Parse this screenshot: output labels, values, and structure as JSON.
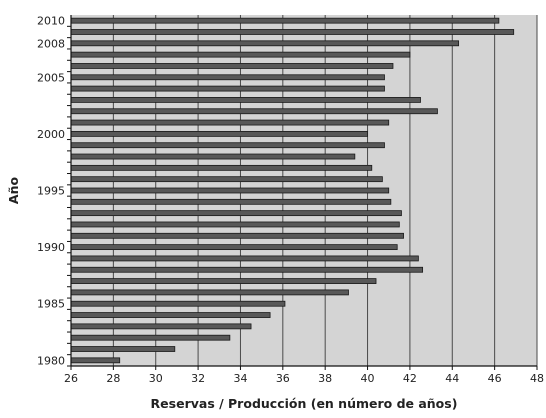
{
  "chart_data": {
    "type": "bar",
    "orientation": "horizontal",
    "xlabel": "Reservas / Producción (en número de años)",
    "ylabel": "Año",
    "xlim": [
      26,
      48
    ],
    "x_ticks": [
      26,
      28,
      30,
      32,
      34,
      36,
      38,
      40,
      42,
      44,
      46,
      48
    ],
    "y_tick_labels": [
      "1980",
      "1985",
      "1990",
      "1995",
      "2000",
      "2005",
      "2008",
      "2010"
    ],
    "grid": "vertical",
    "categories": [
      1980,
      1981,
      1982,
      1983,
      1984,
      1985,
      1986,
      1987,
      1988,
      1989,
      1990,
      1991,
      1992,
      1993,
      1994,
      1995,
      1996,
      1997,
      1998,
      1999,
      2000,
      2001,
      2002,
      2003,
      2004,
      2005,
      2006,
      2007,
      2008,
      2009,
      2010
    ],
    "values": [
      28.3,
      30.9,
      33.5,
      34.5,
      35.4,
      36.1,
      39.1,
      40.4,
      42.6,
      42.4,
      41.4,
      41.7,
      41.5,
      41.6,
      41.1,
      41.0,
      40.7,
      40.2,
      39.4,
      40.8,
      40.0,
      41.0,
      43.3,
      42.5,
      40.8,
      40.8,
      41.2,
      42.0,
      44.3,
      46.9,
      46.2
    ],
    "colors": {
      "plot_background": "#d4d4d4",
      "bar_fill": "#585858",
      "bar_stroke": "#1a1a1a",
      "grid": "#4a4a4a",
      "axis": "#111111"
    }
  }
}
